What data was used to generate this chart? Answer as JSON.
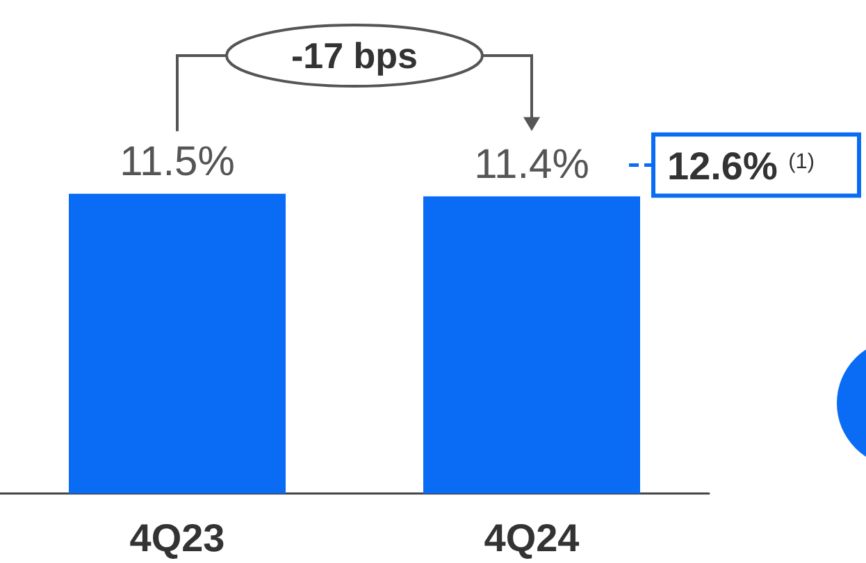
{
  "chart_data": {
    "type": "bar",
    "categories": [
      "4Q23",
      "4Q24"
    ],
    "values": [
      11.5,
      11.4
    ],
    "color": "#0a6cf5",
    "value_labels": [
      "11.5%",
      "11.4%"
    ],
    "tick_labels": "x",
    "grid": false,
    "ref_lines": [
      {
        "axis": "y",
        "value": 12.6,
        "label": "12.6% $^{(1)}$",
        "color": "#0a6cf5",
        "line_style": "dashed"
      }
    ],
    "annotations": [
      "-17 bps"
    ]
  }
}
